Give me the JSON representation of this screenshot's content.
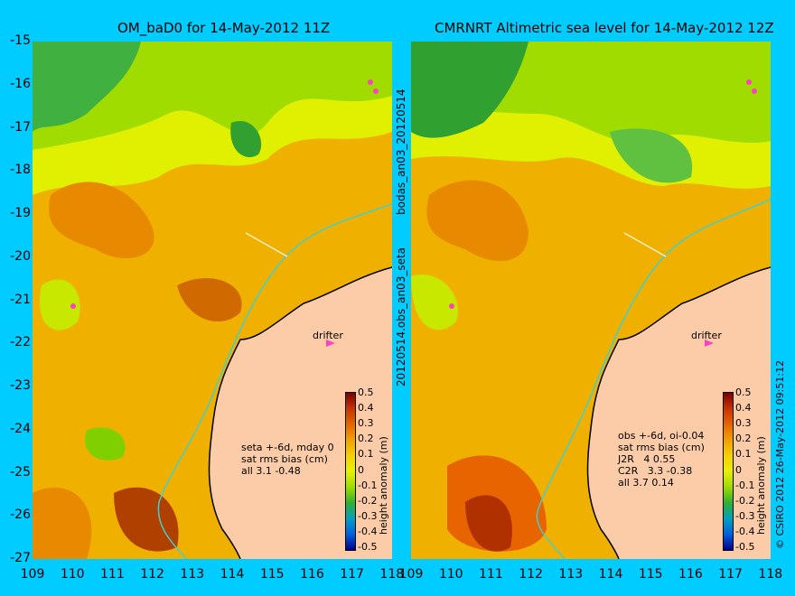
{
  "left_panel": {
    "title": "OM_baD0 for 14-May-2012 11Z",
    "side_label": "bodas_an03_20120514",
    "stats": "seta +-6d, mday 0\nsat rms bias (cm)\nall 3.1 -0.48",
    "drifter_label": "drifter"
  },
  "right_panel": {
    "title": "CMRNRT Altimetric sea level  for 14-May-2012 12Z",
    "side_label": "20120514.obs_an03_seta",
    "stats": "obs +-6d, oi-0.04\nsat rms bias (cm)\nJ2R   4 0.55\nC2R   3.3 -0.38\nall 3.7 0.14",
    "drifter_label": "drifter",
    "copyright": "© CSIRO 2012   26-May-2012 09:51:12"
  },
  "y_ticks": [
    "-15",
    "-16",
    "-17",
    "-18",
    "-19",
    "-20",
    "-21",
    "-22",
    "-23",
    "-24",
    "-25",
    "-26",
    "-27"
  ],
  "x_ticks": [
    "109",
    "110",
    "111",
    "112",
    "113",
    "114",
    "115",
    "116",
    "117",
    "118"
  ],
  "colorbar": {
    "label": "height anomaly (m)",
    "ticks": [
      "0.5",
      "0.4",
      "0.3",
      "0.2",
      "0.1",
      "0",
      "-0.1",
      "-0.2",
      "-0.3",
      "-0.4",
      "-0.5"
    ],
    "colors": [
      "#7a0000",
      "#c83200",
      "#e86400",
      "#f2a000",
      "#f8d000",
      "#e8f000",
      "#9edc00",
      "#30b030",
      "#00a0c0",
      "#0060e0",
      "#00008a"
    ]
  },
  "land_color": "#fccca8",
  "coast_line_color": "#40d0d0"
}
